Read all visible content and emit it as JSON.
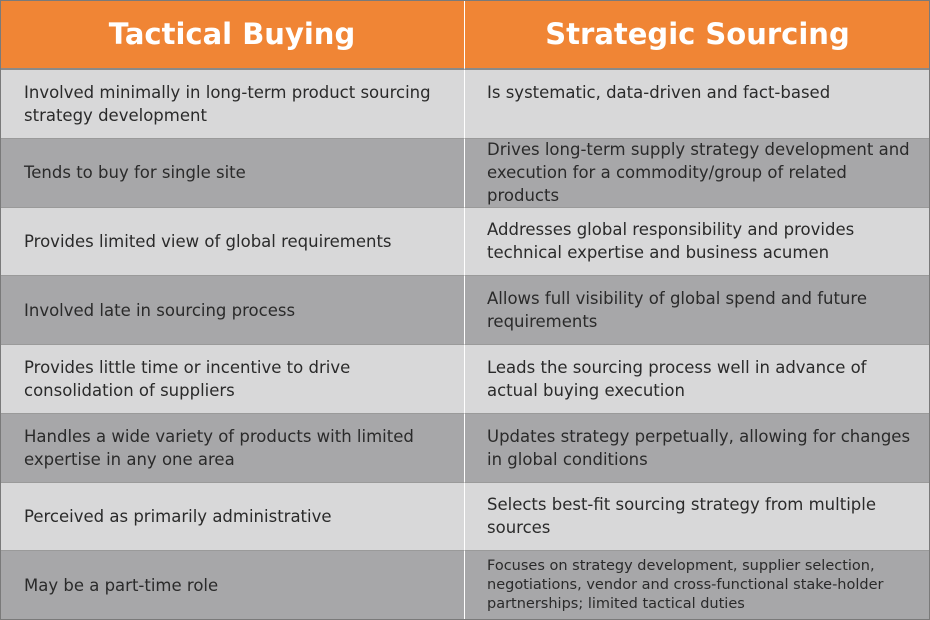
{
  "headers": {
    "tactical": "Tactical Buying",
    "strategic": "Strategic Sourcing"
  },
  "colors": {
    "header_bg": "#f08535",
    "row_light": "#d8d8d9",
    "row_dark": "#a7a7a9"
  },
  "rows": [
    {
      "tactical": "Involved minimally in long-term product sourcing strategy development",
      "strategic": "Is systematic, data-driven and fact-based"
    },
    {
      "tactical": "Tends to buy for single site",
      "strategic": "Drives long-term supply strategy development and execution for a commodity/group of related products"
    },
    {
      "tactical": "Provides limited view of global requirements",
      "strategic": "Addresses global responsibility and provides technical expertise and business acumen"
    },
    {
      "tactical": "Involved late in sourcing process",
      "strategic": "Allows full visibility of global spend and future requirements"
    },
    {
      "tactical": "Provides little time or incentive to drive consolidation of suppliers",
      "strategic": "Leads the sourcing process well in advance of actual buying execution"
    },
    {
      "tactical": "Handles a wide variety of products with limited expertise in any one area",
      "strategic": "Updates strategy perpetually, allowing for changes in global conditions"
    },
    {
      "tactical": "Perceived as primarily administrative",
      "strategic": "Selects best-fit sourcing strategy from multiple sources"
    },
    {
      "tactical": "May be a part-time role",
      "strategic": "Focuses on strategy development, supplier selection, negotiations, vendor and cross-functional stake-holder partnerships; limited tactical duties"
    }
  ]
}
